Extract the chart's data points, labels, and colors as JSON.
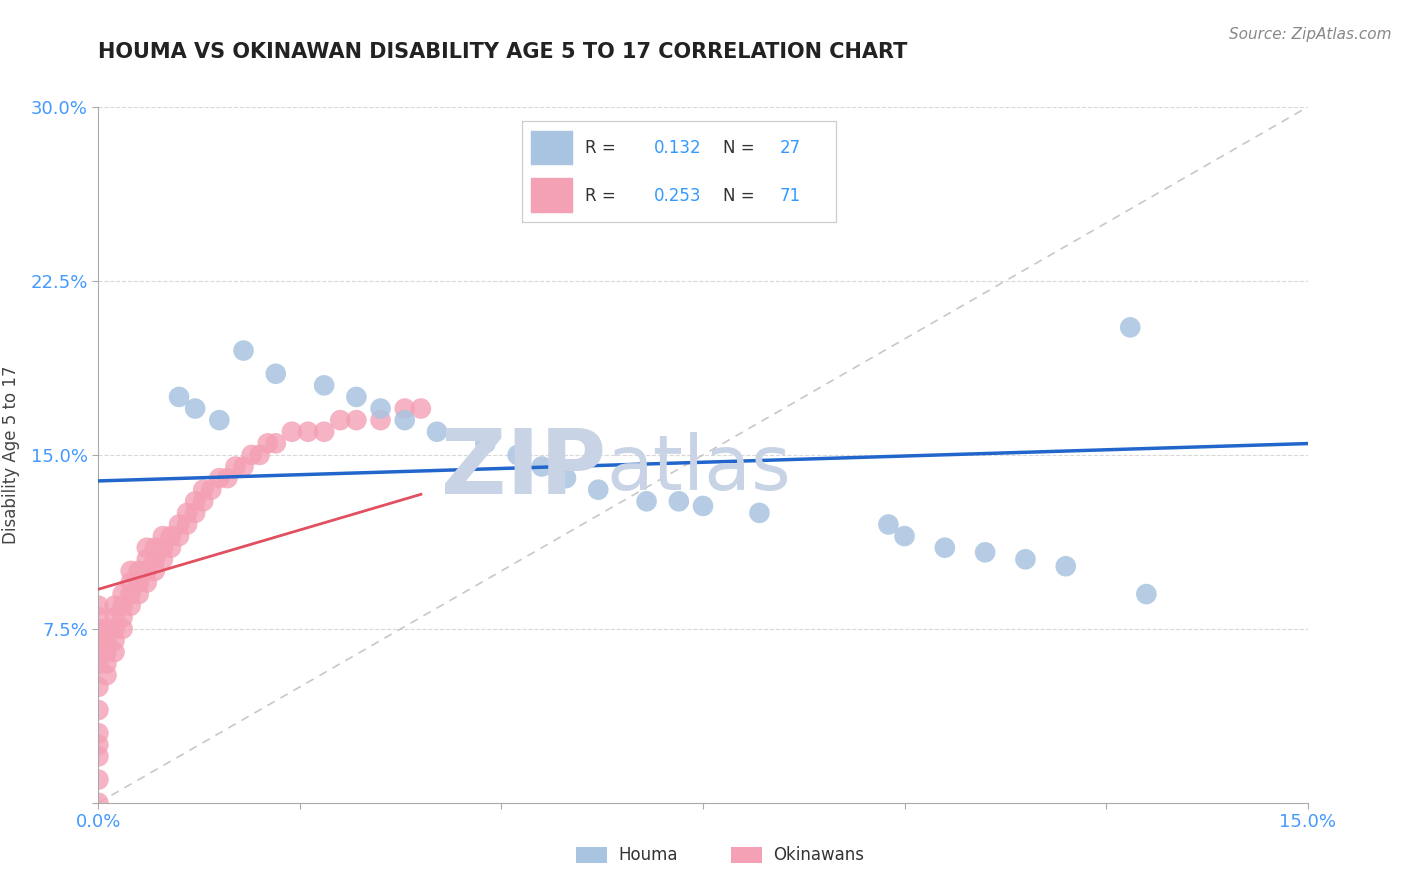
{
  "title": "HOUMA VS OKINAWAN DISABILITY AGE 5 TO 17 CORRELATION CHART",
  "source": "Source: ZipAtlas.com",
  "ylabel": "Disability Age 5 to 17",
  "xlim": [
    0.0,
    0.15
  ],
  "ylim": [
    0.0,
    0.3
  ],
  "xticks": [
    0.0,
    0.025,
    0.05,
    0.075,
    0.1,
    0.125,
    0.15
  ],
  "xticklabels": [
    "0.0%",
    "",
    "",
    "",
    "",
    "",
    "15.0%"
  ],
  "yticks": [
    0.0,
    0.075,
    0.15,
    0.225,
    0.3
  ],
  "yticklabels": [
    "",
    "7.5%",
    "15.0%",
    "22.5%",
    "30.0%"
  ],
  "houma_R": 0.132,
  "houma_N": 27,
  "okinawa_R": 0.253,
  "okinawa_N": 71,
  "houma_color": "#a8c4e0",
  "okinawa_color": "#f4a0b5",
  "houma_line_color": "#2266cc",
  "okinawa_line_color": "#e05060",
  "ref_line_color": "#c8c8c8",
  "background_color": "#ffffff",
  "grid_color": "#d8d8d8",
  "houma_x": [
    0.018,
    0.022,
    0.028,
    0.032,
    0.035,
    0.038,
    0.042,
    0.048,
    0.052,
    0.055,
    0.058,
    0.062,
    0.068,
    0.072,
    0.075,
    0.082,
    0.01,
    0.012,
    0.015,
    0.098,
    0.1,
    0.105,
    0.11,
    0.115,
    0.12,
    0.13,
    0.128
  ],
  "houma_y": [
    0.195,
    0.185,
    0.18,
    0.175,
    0.17,
    0.165,
    0.16,
    0.155,
    0.15,
    0.145,
    0.14,
    0.135,
    0.13,
    0.13,
    0.128,
    0.125,
    0.175,
    0.17,
    0.165,
    0.12,
    0.115,
    0.11,
    0.108,
    0.105,
    0.102,
    0.09,
    0.205
  ],
  "okinawa_x": [
    0.0,
    0.0,
    0.0,
    0.0,
    0.0,
    0.0,
    0.0,
    0.0,
    0.0,
    0.0,
    0.0,
    0.0,
    0.0,
    0.001,
    0.001,
    0.001,
    0.001,
    0.001,
    0.002,
    0.002,
    0.002,
    0.002,
    0.002,
    0.003,
    0.003,
    0.003,
    0.003,
    0.004,
    0.004,
    0.004,
    0.004,
    0.005,
    0.005,
    0.005,
    0.006,
    0.006,
    0.006,
    0.006,
    0.007,
    0.007,
    0.007,
    0.008,
    0.008,
    0.008,
    0.009,
    0.009,
    0.01,
    0.01,
    0.011,
    0.011,
    0.012,
    0.012,
    0.013,
    0.013,
    0.014,
    0.015,
    0.016,
    0.017,
    0.018,
    0.019,
    0.02,
    0.021,
    0.022,
    0.024,
    0.026,
    0.028,
    0.03,
    0.032,
    0.035,
    0.038,
    0.04
  ],
  "okinawa_y": [
    0.0,
    0.01,
    0.02,
    0.025,
    0.03,
    0.04,
    0.05,
    0.06,
    0.065,
    0.07,
    0.075,
    0.08,
    0.085,
    0.055,
    0.06,
    0.065,
    0.07,
    0.075,
    0.065,
    0.07,
    0.075,
    0.08,
    0.085,
    0.075,
    0.08,
    0.085,
    0.09,
    0.085,
    0.09,
    0.095,
    0.1,
    0.09,
    0.095,
    0.1,
    0.095,
    0.1,
    0.105,
    0.11,
    0.1,
    0.105,
    0.11,
    0.105,
    0.11,
    0.115,
    0.11,
    0.115,
    0.115,
    0.12,
    0.12,
    0.125,
    0.125,
    0.13,
    0.13,
    0.135,
    0.135,
    0.14,
    0.14,
    0.145,
    0.145,
    0.15,
    0.15,
    0.155,
    0.155,
    0.16,
    0.16,
    0.16,
    0.165,
    0.165,
    0.165,
    0.17,
    0.17
  ],
  "watermark_zip": "ZIP",
  "watermark_atlas": "atlas",
  "watermark_color": "#ccd5e8",
  "legend_houma_color": "#a8c4e0",
  "legend_okinawa_color": "#f4a0b5",
  "tick_color": "#4499ff",
  "title_color": "#222222",
  "source_color": "#888888"
}
